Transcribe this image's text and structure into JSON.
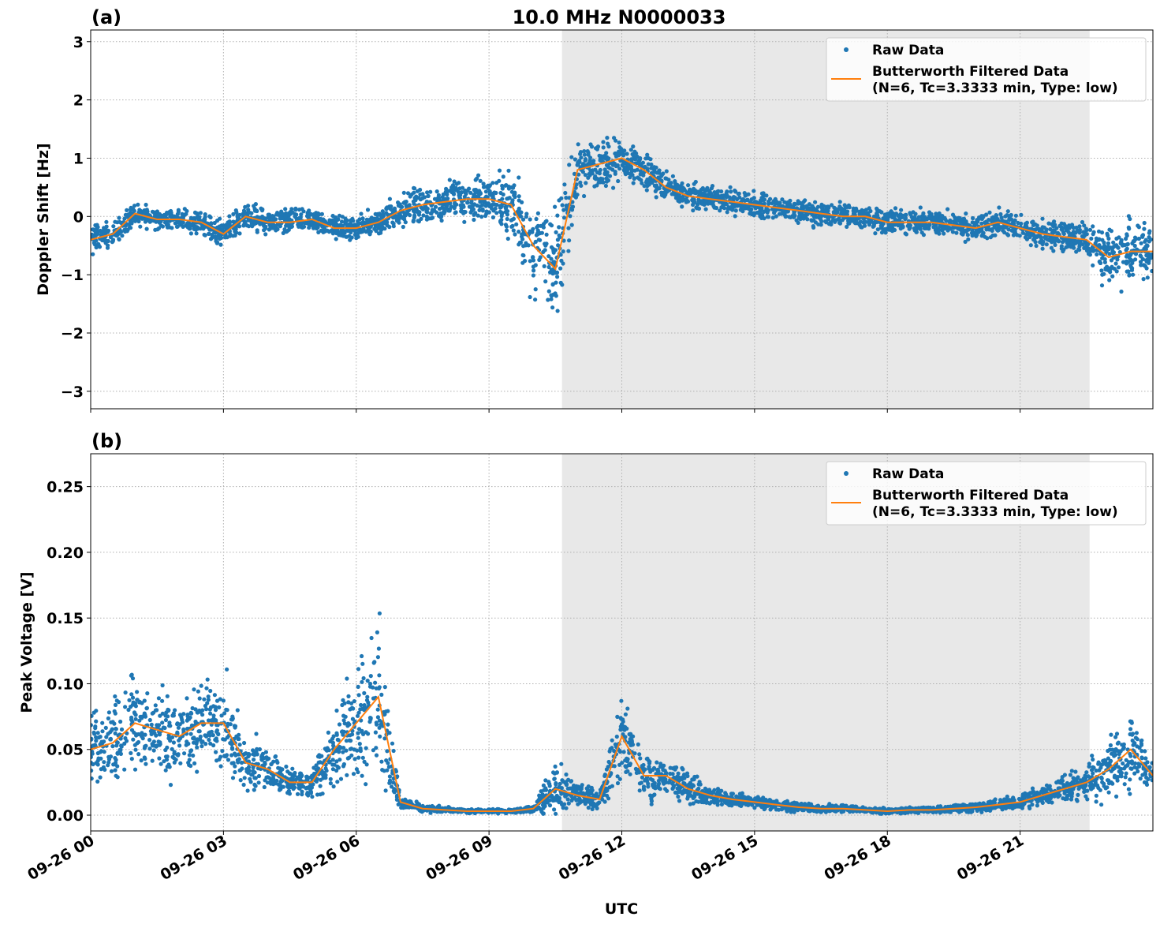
{
  "title": "10.0 MHz N0000033",
  "xlabel": "UTC",
  "date": "09-26",
  "x_tick_labels": [
    "09-26 00",
    "09-26 03",
    "09-26 06",
    "09-26 09",
    "09-26 12",
    "09-26 15",
    "09-26 18",
    "09-26 21"
  ],
  "x_tick_hours": [
    0,
    3,
    6,
    9,
    12,
    15,
    18,
    21
  ],
  "xlim_hours": [
    0,
    24
  ],
  "shaded_span": [
    "09-26 10:39",
    "09-26 22:34"
  ],
  "shaded_span_hours": [
    10.65,
    22.57
  ],
  "colors": {
    "raw": "#1f77b4",
    "filtered": "#ff7f0e",
    "shade": "#e8e8e8"
  },
  "legend": {
    "raw": "Raw Data",
    "filtered_line1": "Butterworth Filtered Data",
    "filtered_line2": "(N=6, Tc=3.3333 min, Type: low)",
    "placement": "upper right"
  },
  "chart_data": [
    {
      "type": "scatter+line",
      "panel_label": "(a)",
      "ylabel": "Doppler Shift [Hz]",
      "ylim": [
        -3.3,
        3.2
      ],
      "y_ticks": [
        -3,
        -2,
        -1,
        0,
        1,
        2,
        3
      ],
      "y_tick_labels": [
        "−3",
        "−2",
        "−1",
        "0",
        "1",
        "2",
        "3"
      ],
      "grid": true,
      "x_hours": [
        0,
        0.5,
        1,
        1.5,
        2,
        2.5,
        3,
        3.5,
        4,
        4.5,
        5,
        5.5,
        6,
        6.5,
        7,
        7.5,
        8,
        8.5,
        9,
        9.5,
        10,
        10.5,
        11,
        11.5,
        12,
        12.5,
        13,
        13.5,
        14,
        14.5,
        15,
        15.5,
        16,
        16.5,
        17,
        17.5,
        18,
        18.5,
        19,
        19.5,
        20,
        20.5,
        21,
        21.5,
        22,
        22.5,
        23,
        23.5,
        24
      ],
      "series": [
        {
          "name": "Butterworth Filtered Data",
          "values": [
            -0.4,
            -0.3,
            0.05,
            -0.05,
            -0.05,
            -0.1,
            -0.3,
            0.0,
            -0.1,
            -0.1,
            -0.05,
            -0.2,
            -0.2,
            -0.1,
            0.1,
            0.2,
            0.25,
            0.3,
            0.3,
            0.2,
            -0.5,
            -0.9,
            0.8,
            0.9,
            1.0,
            0.8,
            0.5,
            0.35,
            0.3,
            0.25,
            0.2,
            0.15,
            0.1,
            0.05,
            0.0,
            0.0,
            -0.1,
            -0.1,
            -0.1,
            -0.15,
            -0.2,
            -0.1,
            -0.2,
            -0.3,
            -0.35,
            -0.4,
            -0.7,
            -0.6,
            -0.6
          ]
        },
        {
          "name": "Raw Data",
          "spread": [
            0.35,
            0.3,
            0.25,
            0.25,
            0.25,
            0.25,
            0.3,
            0.3,
            0.3,
            0.3,
            0.3,
            0.3,
            0.3,
            0.3,
            0.4,
            0.45,
            0.5,
            0.55,
            0.55,
            0.8,
            1.2,
            1.3,
            0.7,
            0.6,
            0.5,
            0.45,
            0.35,
            0.3,
            0.3,
            0.3,
            0.3,
            0.3,
            0.3,
            0.3,
            0.3,
            0.3,
            0.3,
            0.3,
            0.3,
            0.3,
            0.3,
            0.3,
            0.3,
            0.3,
            0.35,
            0.4,
            0.7,
            0.7,
            0.7
          ]
        }
      ]
    },
    {
      "type": "scatter+line",
      "panel_label": "(b)",
      "ylabel": "Peak Voltage [V]",
      "ylim": [
        -0.012,
        0.275
      ],
      "y_ticks": [
        0,
        0.05,
        0.1,
        0.15,
        0.2,
        0.25
      ],
      "y_tick_labels": [
        "0.00",
        "0.05",
        "0.10",
        "0.15",
        "0.20",
        "0.25"
      ],
      "grid": true,
      "x_hours": [
        0,
        0.5,
        1,
        1.5,
        2,
        2.5,
        3,
        3.5,
        4,
        4.5,
        5,
        5.5,
        6,
        6.5,
        7,
        7.5,
        8,
        8.5,
        9,
        9.5,
        10,
        10.5,
        11,
        11.5,
        12,
        12.5,
        13,
        13.5,
        14,
        14.5,
        15,
        15.5,
        16,
        16.5,
        17,
        17.5,
        18,
        18.5,
        19,
        19.5,
        20,
        20.5,
        21,
        21.5,
        22,
        22.5,
        23,
        23.5,
        24
      ],
      "series": [
        {
          "name": "Butterworth Filtered Data",
          "values": [
            0.05,
            0.055,
            0.07,
            0.065,
            0.06,
            0.07,
            0.07,
            0.04,
            0.035,
            0.025,
            0.025,
            0.05,
            0.07,
            0.09,
            0.01,
            0.005,
            0.004,
            0.003,
            0.003,
            0.003,
            0.005,
            0.02,
            0.015,
            0.012,
            0.06,
            0.03,
            0.03,
            0.02,
            0.015,
            0.012,
            0.01,
            0.008,
            0.006,
            0.005,
            0.005,
            0.004,
            0.003,
            0.004,
            0.004,
            0.005,
            0.006,
            0.008,
            0.01,
            0.015,
            0.02,
            0.025,
            0.035,
            0.05,
            0.03
          ]
        },
        {
          "name": "Raw Data",
          "spread": [
            0.04,
            0.04,
            0.05,
            0.05,
            0.045,
            0.05,
            0.05,
            0.03,
            0.02,
            0.015,
            0.015,
            0.04,
            0.06,
            0.08,
            0.008,
            0.004,
            0.003,
            0.002,
            0.002,
            0.002,
            0.004,
            0.03,
            0.012,
            0.01,
            0.05,
            0.025,
            0.02,
            0.015,
            0.01,
            0.008,
            0.007,
            0.006,
            0.005,
            0.004,
            0.004,
            0.003,
            0.003,
            0.003,
            0.003,
            0.004,
            0.005,
            0.006,
            0.008,
            0.01,
            0.015,
            0.02,
            0.03,
            0.045,
            0.02
          ]
        }
      ]
    }
  ]
}
